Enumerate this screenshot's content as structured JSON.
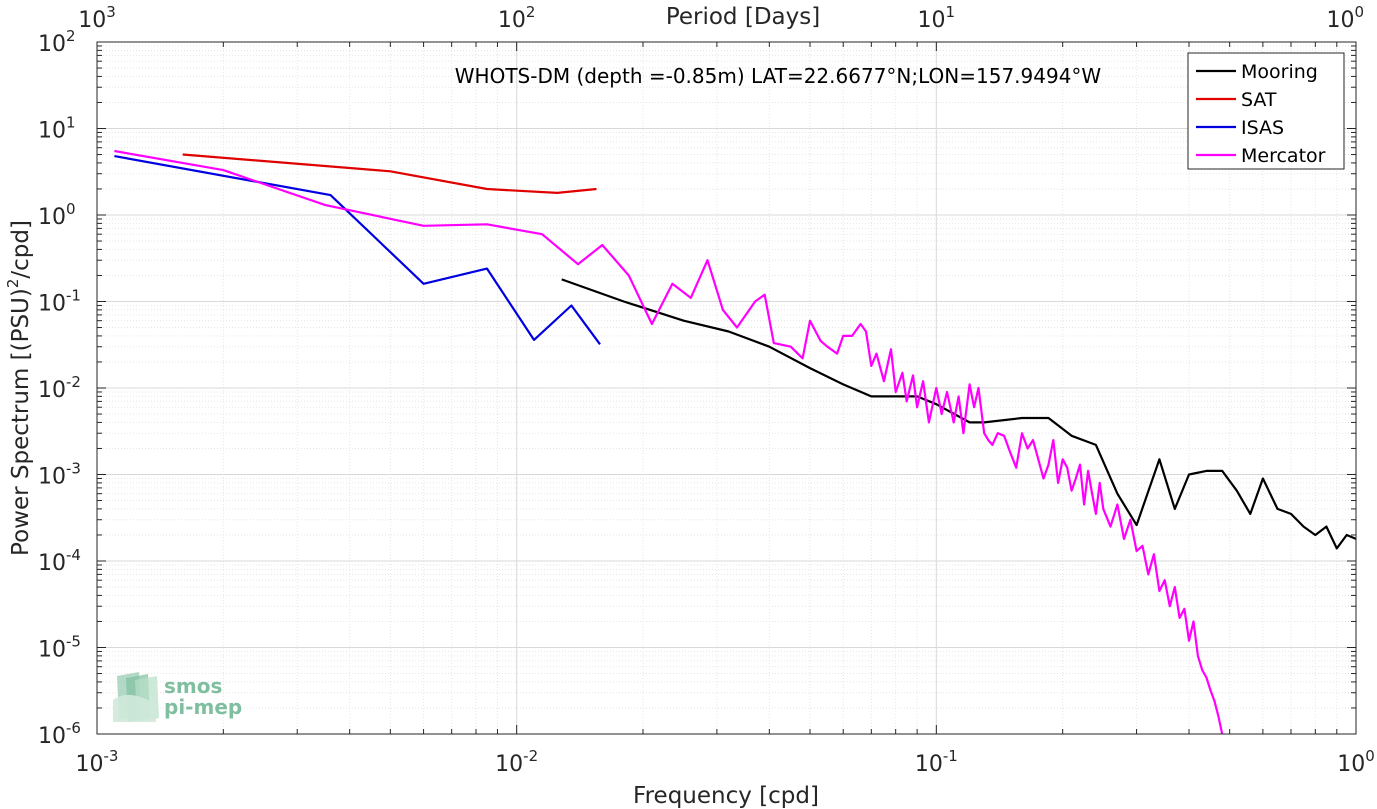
{
  "chart_data": {
    "type": "line",
    "xscale": "log",
    "yscale": "log",
    "xlim": [
      0.001,
      1
    ],
    "ylim": [
      1e-06,
      100
    ],
    "grid": true,
    "minor_grid": true,
    "xlabel": "Frequency [cpd]",
    "ylabel": "Power Spectrum [(PSU)^2/cpd]",
    "ylabel_parts": [
      "Power Spectrum [(PSU)",
      "2",
      "/cpd]"
    ],
    "top_axis_label": "Period [Days]",
    "annotation": "WHOTS-DM (depth =-0.85m) LAT=22.6677°N;LON=157.9494°W",
    "x_ticks": [
      {
        "value": 0.001,
        "base": "10",
        "exp": "-3"
      },
      {
        "value": 0.01,
        "base": "10",
        "exp": "-2"
      },
      {
        "value": 0.1,
        "base": "10",
        "exp": "-1"
      },
      {
        "value": 1,
        "base": "10",
        "exp": "0"
      }
    ],
    "y_ticks": [
      {
        "value": 1e-06,
        "base": "10",
        "exp": "-6"
      },
      {
        "value": 1e-05,
        "base": "10",
        "exp": "-5"
      },
      {
        "value": 0.0001,
        "base": "10",
        "exp": "-4"
      },
      {
        "value": 0.001,
        "base": "10",
        "exp": "-3"
      },
      {
        "value": 0.01,
        "base": "10",
        "exp": "-2"
      },
      {
        "value": 0.1,
        "base": "10",
        "exp": "-1"
      },
      {
        "value": 1,
        "base": "10",
        "exp": "0"
      },
      {
        "value": 10,
        "base": "10",
        "exp": "1"
      },
      {
        "value": 100,
        "base": "10",
        "exp": "2"
      }
    ],
    "top_ticks": [
      {
        "period": 1000,
        "base": "10",
        "exp": "3"
      },
      {
        "period": 100,
        "base": "10",
        "exp": "2"
      },
      {
        "period": 10,
        "base": "10",
        "exp": "1"
      },
      {
        "period": 1,
        "base": "10",
        "exp": "0"
      }
    ],
    "legend_position": "top-right",
    "series": [
      {
        "name": "Mooring",
        "color": "#000000",
        "x": [
          0.0128,
          0.018,
          0.025,
          0.032,
          0.04,
          0.05,
          0.06,
          0.07,
          0.08,
          0.09,
          0.1,
          0.12,
          0.13,
          0.16,
          0.185,
          0.21,
          0.24,
          0.27,
          0.3,
          0.34,
          0.37,
          0.4,
          0.44,
          0.48,
          0.52,
          0.56,
          0.6,
          0.65,
          0.7,
          0.75,
          0.8,
          0.85,
          0.9,
          0.95,
          1.0
        ],
        "y": [
          0.18,
          0.1,
          0.06,
          0.045,
          0.03,
          0.017,
          0.011,
          0.008,
          0.008,
          0.008,
          0.0065,
          0.004,
          0.004,
          0.0045,
          0.0045,
          0.0028,
          0.0022,
          0.0006,
          0.00026,
          0.0015,
          0.0004,
          0.001,
          0.0011,
          0.0011,
          0.00065,
          0.00035,
          0.0009,
          0.0004,
          0.00035,
          0.00025,
          0.0002,
          0.00025,
          0.00014,
          0.0002,
          0.00018
        ]
      },
      {
        "name": "SAT",
        "color": "#e00000",
        "x": [
          0.0016,
          0.005,
          0.0085,
          0.0125,
          0.0155
        ],
        "y": [
          5.0,
          3.2,
          2.0,
          1.8,
          2.0
        ]
      },
      {
        "name": "ISAS",
        "color": "#0000e0",
        "x": [
          0.0011,
          0.0036,
          0.006,
          0.0085,
          0.011,
          0.0135,
          0.0158
        ],
        "y": [
          4.8,
          1.7,
          0.16,
          0.24,
          0.036,
          0.09,
          0.032
        ]
      },
      {
        "name": "Mercator",
        "color": "#ff00ff",
        "x": [
          0.0011,
          0.002,
          0.0035,
          0.006,
          0.0085,
          0.0115,
          0.014,
          0.016,
          0.0185,
          0.021,
          0.0235,
          0.026,
          0.0285,
          0.031,
          0.0335,
          0.037,
          0.039,
          0.041,
          0.045,
          0.048,
          0.05,
          0.053,
          0.055,
          0.058,
          0.06,
          0.063,
          0.066,
          0.068,
          0.07,
          0.072,
          0.075,
          0.078,
          0.08,
          0.083,
          0.085,
          0.088,
          0.09,
          0.093,
          0.096,
          0.1,
          0.103,
          0.106,
          0.11,
          0.113,
          0.116,
          0.12,
          0.123,
          0.126,
          0.13,
          0.133,
          0.136,
          0.14,
          0.145,
          0.15,
          0.155,
          0.16,
          0.165,
          0.17,
          0.175,
          0.18,
          0.185,
          0.19,
          0.195,
          0.2,
          0.205,
          0.21,
          0.215,
          0.22,
          0.225,
          0.23,
          0.235,
          0.24,
          0.245,
          0.25,
          0.26,
          0.27,
          0.28,
          0.29,
          0.3,
          0.31,
          0.32,
          0.33,
          0.34,
          0.35,
          0.36,
          0.37,
          0.38,
          0.39,
          0.4,
          0.41,
          0.42,
          0.43,
          0.44,
          0.45,
          0.46,
          0.47,
          0.48
        ],
        "y": [
          5.5,
          3.3,
          1.3,
          0.75,
          0.78,
          0.6,
          0.27,
          0.45,
          0.2,
          0.055,
          0.16,
          0.11,
          0.3,
          0.08,
          0.05,
          0.1,
          0.12,
          0.033,
          0.03,
          0.022,
          0.06,
          0.035,
          0.03,
          0.025,
          0.04,
          0.04,
          0.055,
          0.045,
          0.018,
          0.025,
          0.012,
          0.028,
          0.009,
          0.015,
          0.007,
          0.014,
          0.006,
          0.012,
          0.004,
          0.01,
          0.005,
          0.009,
          0.004,
          0.008,
          0.003,
          0.011,
          0.006,
          0.01,
          0.003,
          0.0025,
          0.0022,
          0.003,
          0.0028,
          0.0018,
          0.0012,
          0.003,
          0.002,
          0.0025,
          0.0015,
          0.0009,
          0.0013,
          0.0025,
          0.0008,
          0.0015,
          0.0012,
          0.00065,
          0.0009,
          0.0013,
          0.00045,
          0.0011,
          0.0006,
          0.00035,
          0.0008,
          0.0004,
          0.00025,
          0.00045,
          0.00018,
          0.0003,
          0.00013,
          0.00015,
          7e-05,
          0.00012,
          4.5e-05,
          6e-05,
          3e-05,
          5e-05,
          2.2e-05,
          2.8e-05,
          1.2e-05,
          2e-05,
          8e-06,
          5.5e-06,
          4.5e-06,
          3.2e-06,
          2.4e-06,
          1.6e-06,
          1e-06
        ]
      }
    ],
    "logo": {
      "line1": "smos",
      "line2": "pi-mep"
    }
  }
}
